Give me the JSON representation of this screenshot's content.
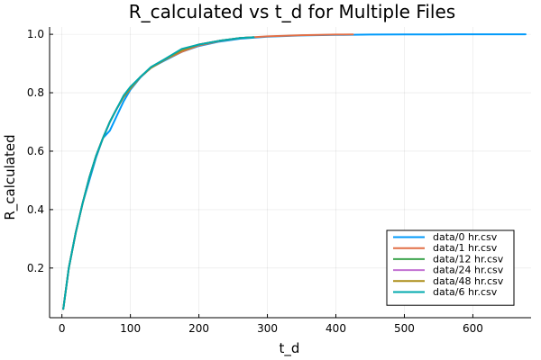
{
  "chart_data": {
    "type": "line",
    "title": "R_calculated vs t_d for Multiple Files",
    "xlabel": "t_d",
    "ylabel": "R_calculated",
    "xlim": [
      -18,
      685
    ],
    "ylim": [
      0.03,
      1.025
    ],
    "xticks": [
      0,
      100,
      200,
      300,
      400,
      500,
      600
    ],
    "yticks": [
      0.2,
      0.4,
      0.6,
      0.8,
      1.0
    ],
    "ytick_labels": [
      "0.2",
      "0.4",
      "0.6",
      "0.8",
      "1.0"
    ],
    "grid": true,
    "legend_position": "bottom-right",
    "series": [
      {
        "name": "data/0 hr.csv",
        "color": "#009AFA",
        "x": [
          2,
          10,
          20,
          30,
          40,
          50,
          60,
          70,
          80,
          90,
          100,
          115,
          130,
          150,
          175,
          200,
          230,
          260,
          300,
          350,
          400,
          450,
          500,
          550,
          600,
          677
        ],
        "y": [
          0.06,
          0.2,
          0.32,
          0.42,
          0.5,
          0.58,
          0.645,
          0.67,
          0.72,
          0.77,
          0.81,
          0.853,
          0.885,
          0.91,
          0.94,
          0.96,
          0.975,
          0.985,
          0.992,
          0.996,
          0.998,
          0.999,
          0.9995,
          0.9998,
          0.9999,
          1.0
        ]
      },
      {
        "name": "data/1 hr.csv",
        "color": "#E26F46",
        "x": [
          2,
          10,
          20,
          30,
          40,
          50,
          60,
          70,
          80,
          90,
          100,
          115,
          130,
          150,
          175,
          200,
          230,
          260,
          300,
          350,
          400,
          425
        ],
        "y": [
          0.06,
          0.2,
          0.32,
          0.42,
          0.51,
          0.585,
          0.645,
          0.7,
          0.745,
          0.785,
          0.815,
          0.855,
          0.885,
          0.913,
          0.94,
          0.962,
          0.977,
          0.987,
          0.993,
          0.997,
          0.999,
          0.9995
        ]
      },
      {
        "name": "data/12 hr.csv",
        "color": "#3DA44E",
        "x": [
          2,
          10,
          20,
          30,
          40,
          50,
          60,
          70,
          80,
          90,
          100,
          115,
          130,
          150,
          175,
          200,
          230,
          260,
          280
        ],
        "y": [
          0.06,
          0.2,
          0.32,
          0.42,
          0.51,
          0.585,
          0.645,
          0.7,
          0.745,
          0.785,
          0.815,
          0.855,
          0.885,
          0.913,
          0.945,
          0.965,
          0.978,
          0.987,
          0.99
        ]
      },
      {
        "name": "data/24 hr.csv",
        "color": "#C271D2",
        "x": [
          2,
          10,
          20,
          30,
          40,
          50,
          60,
          70,
          80,
          90,
          100,
          115,
          130,
          150,
          175,
          200,
          230,
          260,
          280
        ],
        "y": [
          0.06,
          0.2,
          0.32,
          0.42,
          0.51,
          0.585,
          0.645,
          0.7,
          0.745,
          0.785,
          0.815,
          0.855,
          0.885,
          0.913,
          0.945,
          0.965,
          0.978,
          0.987,
          0.99
        ]
      },
      {
        "name": "data/48 hr.csv",
        "color": "#AC8D18",
        "x": [
          2,
          10,
          20,
          30,
          40,
          50,
          60,
          70,
          80,
          90,
          100,
          115,
          130,
          150,
          175,
          200,
          230,
          260,
          280
        ],
        "y": [
          0.06,
          0.2,
          0.32,
          0.42,
          0.51,
          0.585,
          0.645,
          0.7,
          0.745,
          0.785,
          0.815,
          0.855,
          0.885,
          0.913,
          0.945,
          0.965,
          0.978,
          0.987,
          0.99
        ]
      },
      {
        "name": "data/6 hr.csv",
        "color": "#00A9AD",
        "x": [
          2,
          10,
          20,
          30,
          40,
          50,
          60,
          70,
          80,
          90,
          100,
          115,
          130,
          150,
          175,
          200,
          230,
          260,
          280
        ],
        "y": [
          0.06,
          0.2,
          0.32,
          0.42,
          0.51,
          0.585,
          0.645,
          0.7,
          0.745,
          0.79,
          0.82,
          0.855,
          0.888,
          0.915,
          0.95,
          0.965,
          0.978,
          0.987,
          0.99
        ]
      }
    ]
  }
}
